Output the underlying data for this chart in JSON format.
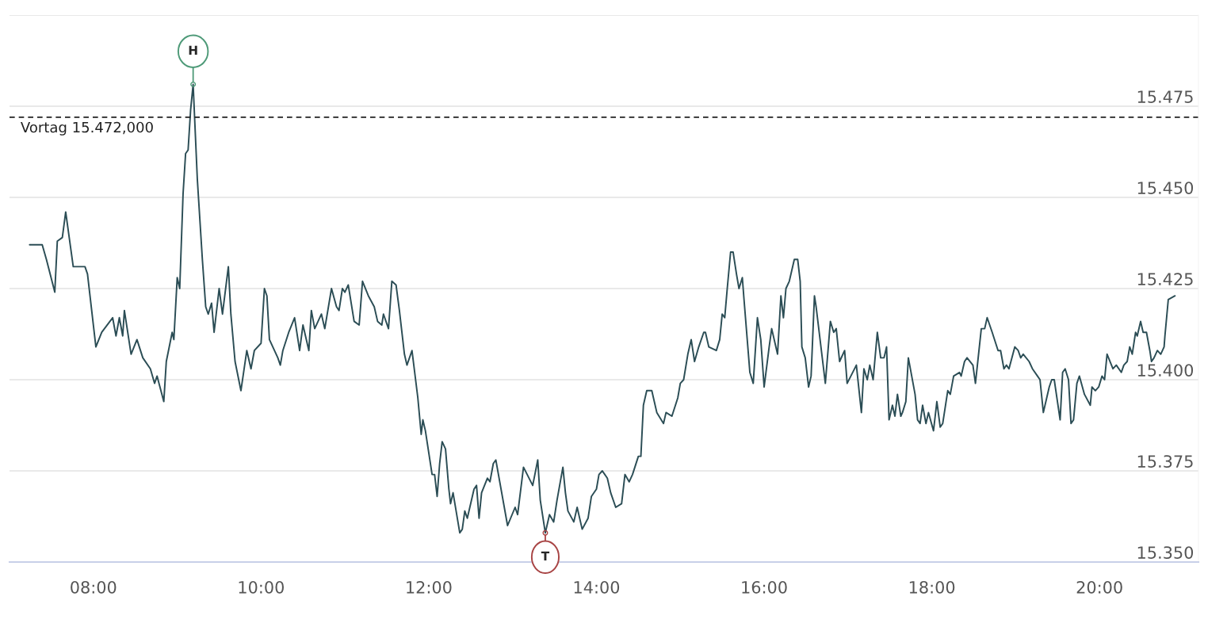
{
  "chart_data": {
    "type": "line",
    "series": [
      {
        "color": "#2b4d55",
        "x": [
          7.24,
          7.39,
          7.44,
          7.54,
          7.57,
          7.63,
          7.67,
          7.76,
          7.9,
          7.93,
          8.03,
          8.1,
          8.23,
          8.27,
          8.31,
          8.35,
          8.37,
          8.45,
          8.52,
          8.59,
          8.68,
          8.73,
          8.76,
          8.84,
          8.87,
          8.94,
          8.96,
          9.0,
          9.03,
          9.07,
          9.1,
          9.13,
          9.16,
          9.19,
          9.24,
          9.3,
          9.34,
          9.37,
          9.41,
          9.44,
          9.5,
          9.54,
          9.61,
          9.64,
          9.69,
          9.76,
          9.83,
          9.88,
          9.92,
          10.0,
          10.04,
          10.07,
          10.1,
          10.2,
          10.23,
          10.26,
          10.33,
          10.4,
          10.46,
          10.5,
          10.57,
          10.6,
          10.64,
          10.72,
          10.76,
          10.84,
          10.9,
          10.93,
          10.97,
          11.0,
          11.04,
          11.11,
          11.17,
          11.21,
          11.28,
          11.35,
          11.39,
          11.44,
          11.46,
          11.52,
          11.56,
          11.61,
          11.65,
          11.71,
          11.74,
          11.8,
          11.87,
          11.91,
          11.93,
          11.96,
          12.04,
          12.07,
          12.1,
          12.13,
          12.16,
          12.2,
          12.24,
          12.26,
          12.29,
          12.37,
          12.4,
          12.43,
          12.46,
          12.54,
          12.57,
          12.6,
          12.63,
          12.7,
          12.73,
          12.77,
          12.8,
          12.94,
          13.03,
          13.06,
          13.13,
          13.24,
          13.3,
          13.33,
          13.39,
          13.44,
          13.49,
          13.53,
          13.6,
          13.63,
          13.66,
          13.73,
          13.77,
          13.83,
          13.9,
          13.94,
          14.0,
          14.03,
          14.07,
          14.13,
          14.17,
          14.23,
          14.3,
          14.34,
          14.39,
          14.43,
          14.5,
          14.53,
          14.56,
          14.6,
          14.66,
          14.72,
          14.8,
          14.83,
          14.9,
          14.97,
          15.0,
          15.04,
          15.09,
          15.13,
          15.17,
          15.22,
          15.28,
          15.3,
          15.34,
          15.43,
          15.47,
          15.5,
          15.53,
          15.56,
          15.6,
          15.63,
          15.67,
          15.7,
          15.74,
          15.76,
          15.83,
          15.87,
          15.92,
          15.96,
          16.0,
          16.06,
          16.09,
          16.16,
          16.2,
          16.23,
          16.26,
          16.3,
          16.36,
          16.4,
          16.43,
          16.45,
          16.49,
          16.53,
          16.56,
          16.6,
          16.62,
          16.73,
          16.79,
          16.83,
          16.86,
          16.9,
          16.96,
          16.99,
          17.1,
          17.16,
          17.19,
          17.23,
          17.26,
          17.3,
          17.35,
          17.39,
          17.43,
          17.46,
          17.49,
          17.53,
          17.56,
          17.59,
          17.63,
          17.65,
          17.69,
          17.72,
          17.8,
          17.83,
          17.86,
          17.89,
          17.93,
          17.96,
          18.02,
          18.06,
          18.1,
          18.13,
          18.19,
          18.22,
          18.26,
          18.33,
          18.35,
          18.39,
          18.42,
          18.49,
          18.52,
          18.59,
          18.63,
          18.66,
          18.72,
          18.79,
          18.82,
          18.86,
          18.89,
          18.92,
          18.99,
          19.03,
          19.06,
          19.09,
          19.16,
          19.2,
          19.26,
          19.29,
          19.33,
          19.37,
          19.4,
          19.43,
          19.46,
          19.53,
          19.56,
          19.59,
          19.63,
          19.66,
          19.69,
          19.73,
          19.76,
          19.82,
          19.89,
          19.91,
          19.95,
          19.99,
          20.03,
          20.06,
          20.09,
          20.16,
          20.2,
          20.26,
          20.29,
          20.33,
          20.36,
          20.39,
          20.43,
          20.45,
          20.49,
          20.52,
          20.56,
          20.6,
          20.62,
          20.65,
          20.69,
          20.73,
          20.77,
          20.78,
          20.82,
          20.9
        ],
        "values": [
          15.437,
          15.437,
          15.433,
          15.424,
          15.438,
          15.439,
          15.446,
          15.431,
          15.431,
          15.429,
          15.409,
          15.413,
          15.417,
          15.412,
          15.417,
          15.412,
          15.419,
          15.407,
          15.411,
          15.406,
          15.403,
          15.399,
          15.401,
          15.394,
          15.405,
          15.413,
          15.411,
          15.428,
          15.425,
          15.451,
          15.462,
          15.463,
          15.474,
          15.481,
          15.455,
          15.433,
          15.42,
          15.418,
          15.421,
          15.413,
          15.425,
          15.418,
          15.431,
          15.418,
          15.405,
          15.397,
          15.408,
          15.403,
          15.408,
          15.41,
          15.425,
          15.423,
          15.411,
          15.406,
          15.404,
          15.408,
          15.413,
          15.417,
          15.408,
          15.415,
          15.408,
          15.419,
          15.414,
          15.418,
          15.414,
          15.425,
          15.42,
          15.419,
          15.425,
          15.424,
          15.426,
          15.416,
          15.415,
          15.427,
          15.423,
          15.42,
          15.416,
          15.415,
          15.418,
          15.414,
          15.427,
          15.426,
          15.419,
          15.407,
          15.404,
          15.408,
          15.395,
          15.385,
          15.389,
          15.386,
          15.374,
          15.374,
          15.368,
          15.377,
          15.383,
          15.381,
          15.37,
          15.366,
          15.369,
          15.358,
          15.359,
          15.364,
          15.362,
          15.37,
          15.371,
          15.362,
          15.369,
          15.373,
          15.372,
          15.377,
          15.378,
          15.36,
          15.365,
          15.363,
          15.376,
          15.371,
          15.378,
          15.367,
          15.358,
          15.363,
          15.361,
          15.367,
          15.376,
          15.369,
          15.364,
          15.361,
          15.365,
          15.359,
          15.362,
          15.368,
          15.37,
          15.374,
          15.375,
          15.373,
          15.369,
          15.365,
          15.366,
          15.374,
          15.372,
          15.374,
          15.379,
          15.379,
          15.393,
          15.397,
          15.397,
          15.391,
          15.388,
          15.391,
          15.39,
          15.395,
          15.399,
          15.4,
          15.407,
          15.411,
          15.405,
          15.409,
          15.413,
          15.413,
          15.409,
          15.408,
          15.411,
          15.418,
          15.417,
          15.425,
          15.435,
          15.435,
          15.429,
          15.425,
          15.428,
          15.422,
          15.402,
          15.399,
          15.417,
          15.411,
          15.398,
          15.409,
          15.414,
          15.407,
          15.423,
          15.417,
          15.425,
          15.427,
          15.433,
          15.433,
          15.427,
          15.409,
          15.406,
          15.398,
          15.401,
          15.423,
          15.42,
          15.399,
          15.416,
          15.413,
          15.414,
          15.405,
          15.408,
          15.399,
          15.404,
          15.391,
          15.403,
          15.4,
          15.404,
          15.4,
          15.413,
          15.406,
          15.406,
          15.409,
          15.389,
          15.393,
          15.39,
          15.396,
          15.39,
          15.391,
          15.394,
          15.406,
          15.396,
          15.389,
          15.388,
          15.393,
          15.388,
          15.391,
          15.386,
          15.394,
          15.387,
          15.388,
          15.397,
          15.396,
          15.401,
          15.402,
          15.401,
          15.405,
          15.406,
          15.404,
          15.399,
          15.414,
          15.414,
          15.417,
          15.413,
          15.408,
          15.408,
          15.403,
          15.404,
          15.403,
          15.409,
          15.408,
          15.406,
          15.407,
          15.405,
          15.403,
          15.401,
          15.4,
          15.391,
          15.395,
          15.398,
          15.4,
          15.4,
          15.389,
          15.402,
          15.403,
          15.4,
          15.388,
          15.389,
          15.399,
          15.401,
          15.396,
          15.393,
          15.398,
          15.397,
          15.398,
          15.401,
          15.4,
          15.407,
          15.403,
          15.404,
          15.402,
          15.404,
          15.405,
          15.409,
          15.407,
          15.413,
          15.412,
          15.416,
          15.413,
          15.413,
          15.408,
          15.405,
          15.406,
          15.408,
          15.407,
          15.409,
          15.412,
          15.422,
          15.423
        ]
      }
    ],
    "xlim": [
      7.0,
      21.18
    ],
    "xticks": [
      {
        "value": 8,
        "label": "08:00"
      },
      {
        "value": 10,
        "label": "10:00"
      },
      {
        "value": 12,
        "label": "12:00"
      },
      {
        "value": 14,
        "label": "14:00"
      },
      {
        "value": 16,
        "label": "16:00"
      },
      {
        "value": 18,
        "label": "18:00"
      },
      {
        "value": 20,
        "label": "20:00"
      }
    ],
    "ylim": [
      15.35,
      15.5
    ],
    "yticks": [
      {
        "value": 15.35,
        "label": "15.350"
      },
      {
        "value": 15.375,
        "label": "15.375"
      },
      {
        "value": 15.4,
        "label": "15.400"
      },
      {
        "value": 15.425,
        "label": "15.425"
      },
      {
        "value": 15.45,
        "label": "15.450"
      },
      {
        "value": 15.475,
        "label": "15.475"
      },
      {
        "value": 15.5,
        "label": null
      }
    ],
    "grid": "y",
    "ref_lines": [
      {
        "axis": "y",
        "value": 15.472,
        "label": "Vortag 15.472,000",
        "color": "#222222",
        "line_style": "dashed"
      }
    ],
    "annotations": [
      {
        "text": "H",
        "x": 9.19,
        "y": 15.481
      },
      {
        "text": "T",
        "x": 13.39,
        "y": 15.358
      }
    ]
  }
}
